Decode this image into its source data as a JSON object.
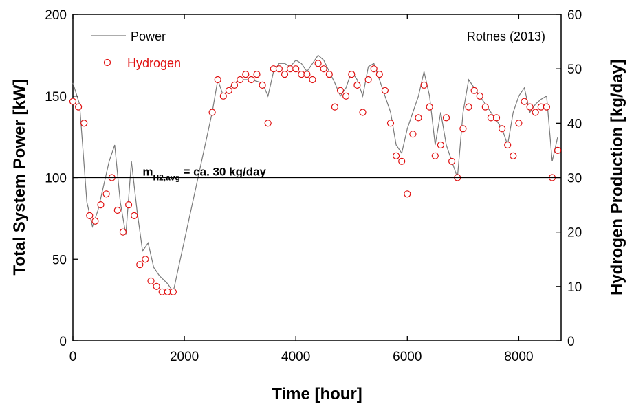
{
  "chart_data": {
    "type": "line",
    "title": "",
    "xlabel": "Time  [hour]",
    "ylabel_left": "Total System Power [kW]",
    "ylabel_right": "Hydrogen Production [kg/day]",
    "xlim": [
      0,
      8760
    ],
    "ylim_left": [
      0,
      200
    ],
    "ylim_right": [
      0,
      60
    ],
    "x_ticks": [
      0,
      2000,
      4000,
      6000,
      8000
    ],
    "y_left_ticks": [
      0,
      50,
      100,
      150,
      200
    ],
    "y_right_ticks": [
      0,
      10,
      20,
      30,
      40,
      50,
      60
    ],
    "grid": false,
    "legend_position": "top-left",
    "source_note": "Rotnes (2013)",
    "reference_line": {
      "y_left": 100,
      "y_right": 30,
      "label_main": "m",
      "label_sub": "H2,avg",
      "label_rest": " = ca. 30 kg/day"
    },
    "colors": {
      "power": "#7a7a7a",
      "hydrogen": "#e01010",
      "axes": "#000000"
    },
    "series": [
      {
        "name": "Power",
        "axis": "left",
        "style": "line",
        "x": [
          0,
          120,
          250,
          350,
          450,
          550,
          650,
          750,
          850,
          950,
          1050,
          1150,
          1250,
          1350,
          1450,
          1550,
          1700,
          1800,
          2500,
          2600,
          2700,
          2800,
          2900,
          3000,
          3200,
          3400,
          3500,
          3600,
          3700,
          3800,
          3900,
          4000,
          4100,
          4200,
          4300,
          4400,
          4500,
          4600,
          4700,
          4800,
          4900,
          5000,
          5100,
          5200,
          5300,
          5400,
          5500,
          5600,
          5700,
          5800,
          5900,
          6000,
          6100,
          6200,
          6300,
          6400,
          6500,
          6600,
          6700,
          6800,
          6900,
          7000,
          7100,
          7200,
          7300,
          7400,
          7500,
          7600,
          7700,
          7800,
          7900,
          8000,
          8100,
          8200,
          8300,
          8400,
          8500,
          8600,
          8700
        ],
        "y": [
          158,
          145,
          85,
          70,
          80,
          95,
          110,
          120,
          85,
          65,
          110,
          80,
          55,
          60,
          45,
          40,
          35,
          30,
          140,
          160,
          150,
          155,
          158,
          160,
          160,
          158,
          150,
          165,
          170,
          170,
          168,
          172,
          170,
          165,
          170,
          175,
          172,
          165,
          158,
          150,
          155,
          165,
          160,
          150,
          168,
          170,
          160,
          150,
          140,
          120,
          115,
          130,
          140,
          150,
          165,
          150,
          120,
          140,
          120,
          110,
          100,
          140,
          160,
          155,
          150,
          145,
          140,
          135,
          130,
          120,
          140,
          150,
          155,
          140,
          145,
          148,
          150,
          110,
          125
        ]
      },
      {
        "name": "Hydrogen",
        "axis": "right",
        "style": "markers",
        "x": [
          0,
          100,
          200,
          300,
          400,
          500,
          600,
          700,
          800,
          900,
          1000,
          1100,
          1200,
          1300,
          1400,
          1500,
          1600,
          1700,
          1800,
          2500,
          2600,
          2700,
          2800,
          2900,
          3000,
          3100,
          3200,
          3300,
          3400,
          3500,
          3600,
          3700,
          3800,
          3900,
          4000,
          4100,
          4200,
          4300,
          4400,
          4500,
          4600,
          4700,
          4800,
          4900,
          5000,
          5100,
          5200,
          5300,
          5400,
          5500,
          5600,
          5700,
          5800,
          5900,
          6000,
          6100,
          6200,
          6300,
          6400,
          6500,
          6600,
          6700,
          6800,
          6900,
          7000,
          7100,
          7200,
          7300,
          7400,
          7500,
          7600,
          7700,
          7800,
          7900,
          8000,
          8100,
          8200,
          8300,
          8400,
          8500,
          8600,
          8700
        ],
        "y": [
          44,
          43,
          40,
          23,
          22,
          25,
          27,
          30,
          24,
          20,
          25,
          23,
          14,
          15,
          11,
          10,
          9,
          9,
          9,
          42,
          48,
          45,
          46,
          47,
          48,
          49,
          48,
          49,
          47,
          40,
          50,
          50,
          49,
          50,
          50,
          49,
          49,
          48,
          51,
          50,
          49,
          43,
          46,
          45,
          49,
          47,
          42,
          48,
          50,
          49,
          46,
          40,
          34,
          33,
          27,
          38,
          41,
          47,
          43,
          34,
          36,
          41,
          33,
          30,
          39,
          43,
          46,
          45,
          43,
          41,
          41,
          39,
          36,
          34,
          40,
          44,
          43,
          42,
          43,
          43,
          30,
          35
        ]
      }
    ]
  }
}
